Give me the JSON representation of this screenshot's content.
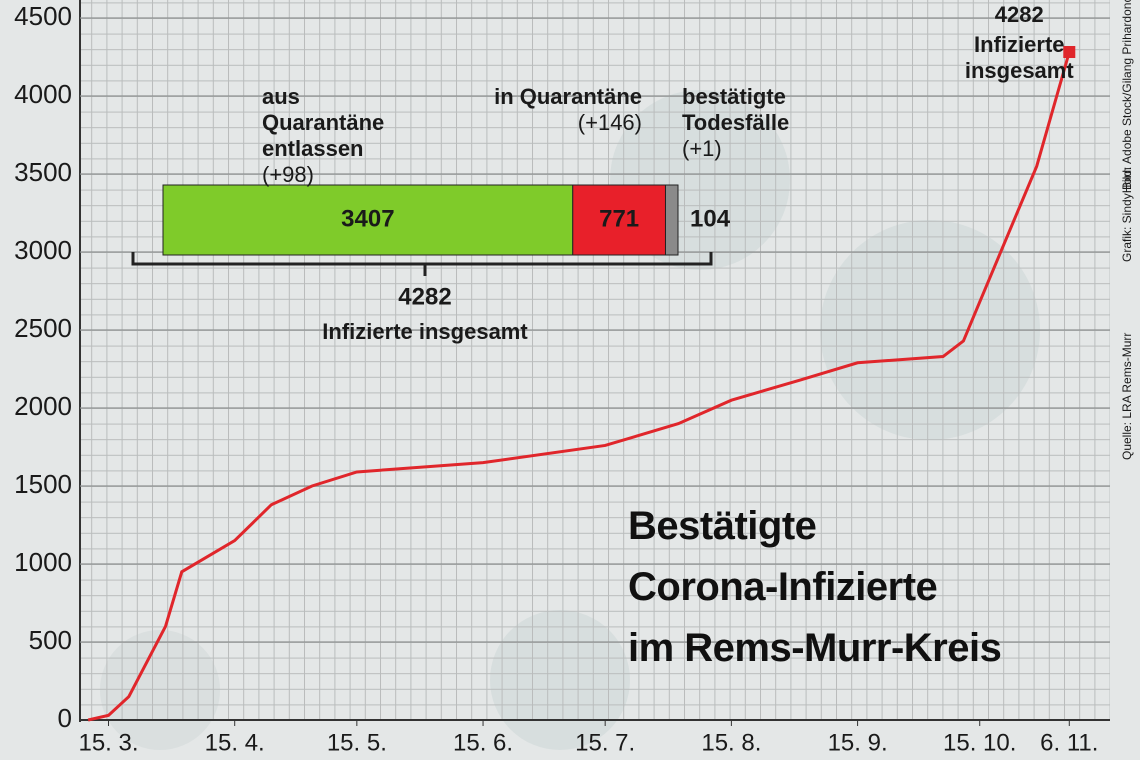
{
  "chart_data": {
    "type": "line",
    "title": [
      "Bestätigte",
      "Corona-Infizierte",
      "im Rems-Murr-Kreis"
    ],
    "series": [
      {
        "name": "Infizierte insgesamt",
        "color": "#e0262b",
        "x": [
          -5,
          0,
          5,
          10,
          14,
          18,
          31,
          40,
          50,
          61,
          92,
          122,
          140,
          153,
          170,
          184,
          205,
          210,
          214,
          228,
          236
        ],
        "values": [
          0,
          30,
          150,
          400,
          600,
          950,
          1150,
          1380,
          1500,
          1590,
          1650,
          1760,
          1900,
          2050,
          2180,
          2290,
          2330,
          2430,
          2680,
          3550,
          4282
        ]
      }
    ],
    "xlim": [
      -7,
      246
    ],
    "xticks": [
      {
        "value": 0,
        "label": "15. 3."
      },
      {
        "value": 31,
        "label": "15. 4."
      },
      {
        "value": 61,
        "label": "15. 5."
      },
      {
        "value": 92,
        "label": "15. 6."
      },
      {
        "value": 122,
        "label": "15. 7."
      },
      {
        "value": 153,
        "label": "15. 8."
      },
      {
        "value": 184,
        "label": "15. 9."
      },
      {
        "value": 214,
        "label": "15. 10."
      },
      {
        "value": 236,
        "label": "6. 11."
      }
    ],
    "ylim": [
      0,
      4500
    ],
    "yticks": [
      0,
      500,
      1000,
      1500,
      2000,
      2500,
      3000,
      3500,
      4000,
      4500
    ],
    "grid": true,
    "end_label": "Infizierte insgesamt",
    "breakdown": {
      "segments": [
        {
          "name": "aus Quarantäne entlassen",
          "change": "(+98)",
          "value": 3407,
          "color": "#7fcb2a"
        },
        {
          "name": "in Quarantäne",
          "change": "(+146)",
          "value": 771,
          "color": "#e8202a"
        },
        {
          "name": "bestätigte Todesfälle",
          "change": "(+1)",
          "value": 104,
          "color": "#8a8a8a"
        }
      ],
      "total": {
        "value": 4282,
        "label": "Infizierte insgesamt"
      }
    },
    "credits": [
      "Quelle: LRA Rems-Murr",
      "Grafik: SindyHorn",
      "Bild: Adobe Stock/Gilang Prihardono"
    ]
  }
}
